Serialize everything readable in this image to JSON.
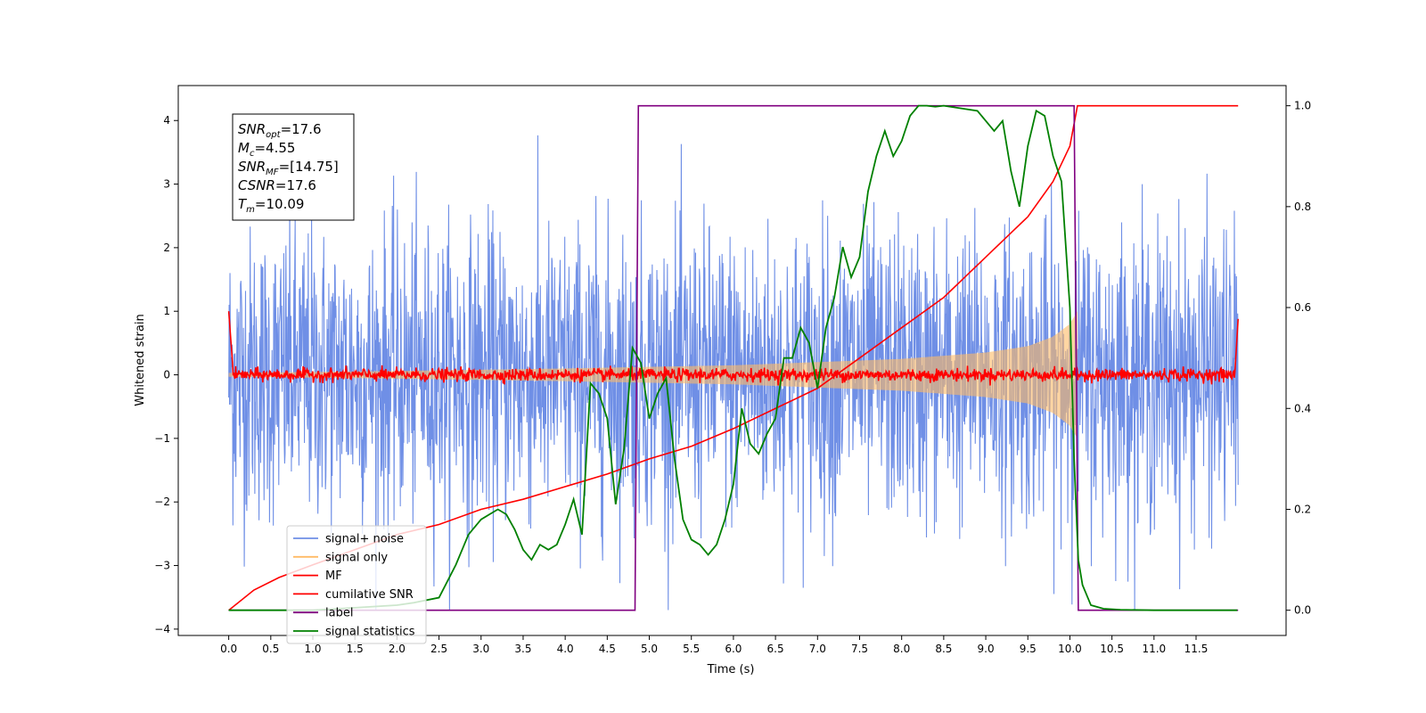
{
  "chart_data": {
    "type": "line",
    "xlabel": "Time (s)",
    "ylabel": "Whitened strain",
    "xlim": [
      -0.6,
      12.57
    ],
    "ylim": [
      -4.1,
      4.55
    ],
    "ylim_right": [
      -0.05,
      1.04
    ],
    "x_ticks": [
      0.0,
      0.5,
      1.0,
      1.5,
      2.0,
      2.5,
      3.0,
      3.5,
      4.0,
      4.5,
      5.0,
      5.5,
      6.0,
      6.5,
      7.0,
      7.5,
      8.0,
      8.5,
      9.0,
      9.5,
      10.0,
      10.5,
      11.0,
      11.5
    ],
    "y_ticks_left": [
      4,
      3,
      2,
      1,
      0,
      -1,
      -2,
      -3,
      -4
    ],
    "y_ticks_right": [
      1.0,
      0.8,
      0.6,
      0.4,
      0.2,
      0.0
    ],
    "legend_placement": "lower-left",
    "series": [
      {
        "name": "signal+ noise",
        "axis": "left",
        "color": "#6f8fe6",
        "noise_std": 1.0,
        "x_range": [
          0.0,
          12.0
        ]
      },
      {
        "name": "signal only",
        "axis": "left",
        "color": "#ffbb66",
        "envelope": {
          "x": [
            0.0,
            2.0,
            4.0,
            6.0,
            8.0,
            9.0,
            9.5,
            9.8,
            10.0,
            10.09
          ],
          "amp": [
            0.03,
            0.06,
            0.1,
            0.15,
            0.25,
            0.35,
            0.45,
            0.6,
            0.8,
            1.0
          ]
        }
      },
      {
        "name": "MF",
        "axis": "left",
        "color": "#ff0000",
        "noise_std": 0.05,
        "x_range": [
          0.0,
          12.0
        ]
      },
      {
        "name": "cumilative SNR",
        "axis": "right",
        "color": "#ff0000",
        "x": [
          0.0,
          0.3,
          0.6,
          1.0,
          1.5,
          2.0,
          2.5,
          3.0,
          3.5,
          4.0,
          4.5,
          5.0,
          5.5,
          6.0,
          6.5,
          7.0,
          7.5,
          8.0,
          8.5,
          9.0,
          9.5,
          9.8,
          10.0,
          10.09,
          12.0
        ],
        "values": [
          0.0,
          0.04,
          0.065,
          0.09,
          0.12,
          0.15,
          0.17,
          0.2,
          0.22,
          0.245,
          0.27,
          0.3,
          0.325,
          0.36,
          0.4,
          0.44,
          0.5,
          0.56,
          0.62,
          0.7,
          0.78,
          0.85,
          0.92,
          1.0,
          1.0
        ]
      },
      {
        "name": "label",
        "axis": "right",
        "color": "#800080",
        "x": [
          0.0,
          4.83,
          4.87,
          10.05,
          10.1,
          12.0
        ],
        "values": [
          0.0,
          0.0,
          1.0,
          1.0,
          0.0,
          0.0
        ]
      },
      {
        "name": "signal statistics",
        "axis": "right",
        "color": "#008000",
        "x": [
          0.0,
          1.0,
          1.5,
          2.0,
          2.2,
          2.5,
          2.7,
          2.85,
          3.0,
          3.1,
          3.2,
          3.3,
          3.4,
          3.5,
          3.6,
          3.7,
          3.8,
          3.9,
          4.0,
          4.1,
          4.2,
          4.3,
          4.4,
          4.5,
          4.6,
          4.7,
          4.8,
          4.9,
          5.0,
          5.1,
          5.2,
          5.3,
          5.4,
          5.5,
          5.6,
          5.7,
          5.8,
          5.9,
          6.0,
          6.1,
          6.2,
          6.3,
          6.4,
          6.5,
          6.6,
          6.7,
          6.8,
          6.9,
          7.0,
          7.1,
          7.2,
          7.3,
          7.4,
          7.5,
          7.6,
          7.7,
          7.8,
          7.9,
          8.0,
          8.1,
          8.2,
          8.3,
          8.4,
          8.5,
          8.7,
          8.9,
          9.1,
          9.2,
          9.3,
          9.4,
          9.5,
          9.6,
          9.7,
          9.8,
          9.9,
          10.0,
          10.05,
          10.1,
          10.15,
          10.25,
          10.4,
          10.6,
          11.0,
          11.5,
          11.99
        ],
        "values": [
          0.0,
          0.0,
          0.005,
          0.01,
          0.015,
          0.025,
          0.09,
          0.15,
          0.18,
          0.19,
          0.2,
          0.19,
          0.16,
          0.12,
          0.1,
          0.13,
          0.12,
          0.13,
          0.17,
          0.22,
          0.15,
          0.45,
          0.43,
          0.38,
          0.21,
          0.32,
          0.52,
          0.49,
          0.38,
          0.43,
          0.46,
          0.3,
          0.18,
          0.14,
          0.13,
          0.11,
          0.13,
          0.18,
          0.25,
          0.4,
          0.33,
          0.31,
          0.35,
          0.38,
          0.5,
          0.5,
          0.56,
          0.53,
          0.44,
          0.56,
          0.62,
          0.72,
          0.66,
          0.7,
          0.83,
          0.9,
          0.95,
          0.9,
          0.93,
          0.98,
          1.0,
          1.0,
          0.998,
          1.0,
          0.995,
          0.99,
          0.95,
          0.97,
          0.87,
          0.8,
          0.92,
          0.99,
          0.98,
          0.9,
          0.85,
          0.6,
          0.3,
          0.1,
          0.05,
          0.01,
          0.003,
          0.001,
          0.0,
          0.0,
          0.0
        ]
      }
    ],
    "annotation": {
      "lines": [
        {
          "base": "SNR",
          "sub": "opt",
          "value": "=17.6"
        },
        {
          "base": "M",
          "sub": "c",
          "value": "=4.55"
        },
        {
          "base": "SNR",
          "sub": "MF",
          "value": "=[14.75]"
        },
        {
          "base": "CSNR",
          "sub": "",
          "value": "=17.6"
        },
        {
          "base": "T",
          "sub": "m",
          "value": "=10.09"
        }
      ]
    }
  }
}
